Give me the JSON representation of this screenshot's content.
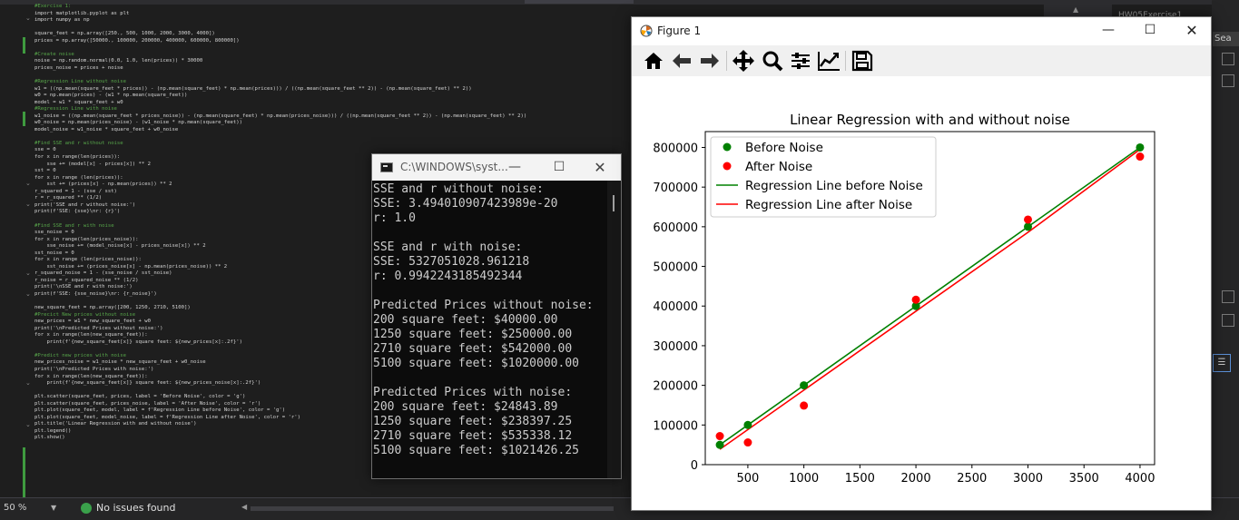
{
  "editor": {
    "code_lines": [
      {
        "t": "#Exercise 1:",
        "c": "cm"
      },
      {
        "t": "import matplotlib.pyplot as plt"
      },
      {
        "t": "import numpy as np"
      },
      {
        "t": ""
      },
      {
        "t": "square_feet = np.array([250., 500, 1000, 2000, 3000, 4000])"
      },
      {
        "t": "prices = np.array([50000., 100000, 200000, 400000, 600000, 800000])"
      },
      {
        "t": ""
      },
      {
        "t": "#Create noise",
        "c": "cm"
      },
      {
        "t": "noise = np.random.normal(0.0, 1.0, len(prices)) * 30000"
      },
      {
        "t": "prices_noise = prices + noise"
      },
      {
        "t": ""
      },
      {
        "t": "#Regression Line without noise",
        "c": "cm"
      },
      {
        "t": "w1 = ((np.mean(square_feet * prices)) - (np.mean(square_feet) * np.mean(prices))) / ((np.mean(square_feet ** 2)) - (np.mean(square_feet) ** 2))"
      },
      {
        "t": "w0 = np.mean(prices) - (w1 * np.mean(square_feet))"
      },
      {
        "t": "model = w1 * square_feet + w0"
      },
      {
        "t": "#Regression Line with noise",
        "c": "cm"
      },
      {
        "t": "w1_noise = ((np.mean(square_feet * prices_noise)) - (np.mean(square_feet) * np.mean(prices_noise))) / ((np.mean(square_feet ** 2)) - (np.mean(square_feet) ** 2))"
      },
      {
        "t": "w0_noise = np.mean(prices_noise) - (w1_noise * np.mean(square_feet))"
      },
      {
        "t": "model_noise = w1_noise * square_feet + w0_noise"
      },
      {
        "t": ""
      },
      {
        "t": "#Find SSE and r without noise",
        "c": "cm"
      },
      {
        "t": "sse = 0"
      },
      {
        "t": "for x in range(len(prices)):"
      },
      {
        "t": "    sse += (model[x] - prices[x]) ** 2"
      },
      {
        "t": "sst = 0"
      },
      {
        "t": "for x in range (len(prices)):"
      },
      {
        "t": "    sst += (prices[x] - np.mean(prices)) ** 2"
      },
      {
        "t": "r_squared = 1 - (sse / sst)"
      },
      {
        "t": "r = r_squared ** (1/2)"
      },
      {
        "t": "print('SSE and r without noise:')"
      },
      {
        "t": "print(f'SSE: {sse}\\nr: {r}')"
      },
      {
        "t": ""
      },
      {
        "t": "#Find SSE and r with noise",
        "c": "cm"
      },
      {
        "t": "sse_noise = 0"
      },
      {
        "t": "for x in range(len(prices_noise)):"
      },
      {
        "t": "    sse_noise += (model_noise[x] - prices_noise[x]) ** 2"
      },
      {
        "t": "sst_noise = 0"
      },
      {
        "t": "for x in range (len(prices_noise)):"
      },
      {
        "t": "    sst_noise += (prices_noise[x] - np.mean(prices_noise)) ** 2"
      },
      {
        "t": "r_squared_noise = 1 - (sse_noise / sst_noise)"
      },
      {
        "t": "r_noise = r_squared_noise ** (1/2)"
      },
      {
        "t": "print('\\nSSE and r with noise:')"
      },
      {
        "t": "print(f'SSE: {sse_noise}\\nr: {r_noise}')"
      },
      {
        "t": ""
      },
      {
        "t": "new_square_feet = np.array([200, 1250, 2710, 5100])"
      },
      {
        "t": "#Precict New prices without noise",
        "c": "cm"
      },
      {
        "t": "new_prices = w1 * new_square_feet + w0"
      },
      {
        "t": "print('\\nPredicted Prices without noise:')"
      },
      {
        "t": "for x in range(len(new_square_feet)):"
      },
      {
        "t": "    print(f'{new_square_feet[x]} square feet: ${new_prices[x]:.2f}')"
      },
      {
        "t": ""
      },
      {
        "t": "#Predict new prices with noise",
        "c": "cm"
      },
      {
        "t": "new_prices_noise = w1_noise * new_square_feet + w0_noise"
      },
      {
        "t": "print('\\nPredicted Prices with noise:')"
      },
      {
        "t": "for x in range(len(new_square_feet)):"
      },
      {
        "t": "    print(f'{new_square_feet[x]} square feet: ${new_prices_noise[x]:.2f}')"
      },
      {
        "t": ""
      },
      {
        "t": "plt.scatter(square_feet, prices, label = 'Before Noise', color = 'g')"
      },
      {
        "t": "plt.scatter(square_feet, prices_noise, label = 'After Noise', color = 'r')"
      },
      {
        "t": "plt.plot(square_feet, model, label = f'Regression Line before Noise', color = 'g')"
      },
      {
        "t": "plt.plot(square_feet, model_noise, label = f'Regression Line after Noise', color = 'r')"
      },
      {
        "t": "plt.title('Linear Regression with and without noise')"
      },
      {
        "t": "plt.legend()"
      },
      {
        "t": "plt.show()"
      }
    ]
  },
  "right_panel": {
    "solution_item": "HW05Exercise1",
    "search_tab": "Sea"
  },
  "statusbar": {
    "zoom": "50 %",
    "issues": "No issues found"
  },
  "console": {
    "title": "C:\\WINDOWS\\syst...",
    "lines": [
      "SSE and r without noise:",
      "SSE: 3.494010907423989e-20",
      "r: 1.0",
      "",
      "SSE and r with noise:",
      "SSE: 5327051028.961218",
      "r: 0.9942243185492344",
      "",
      "Predicted Prices without noise:",
      "200 square feet: $40000.00",
      "1250 square feet: $250000.00",
      "2710 square feet: $542000.00",
      "5100 square feet: $1020000.00",
      "",
      "Predicted Prices with noise:",
      "200 square feet: $24843.89",
      "1250 square feet: $238397.25",
      "2710 square feet: $535338.12",
      "5100 square feet: $1021426.25"
    ]
  },
  "figure": {
    "title": "Figure 1",
    "toolbar": [
      "home-icon",
      "back-icon",
      "forward-icon",
      "pan-icon",
      "zoom-icon",
      "configure-subplots-icon",
      "edit-axis-icon",
      "save-icon"
    ]
  },
  "chart_data": {
    "type": "scatter",
    "title": "Linear Regression with and without noise",
    "xlabel": "",
    "ylabel": "",
    "xlim": [
      120,
      4130
    ],
    "ylim": [
      0,
      840000
    ],
    "xticks": [
      500,
      1000,
      1500,
      2000,
      2500,
      3000,
      3500,
      4000
    ],
    "yticks": [
      0,
      100000,
      200000,
      300000,
      400000,
      500000,
      600000,
      700000,
      800000
    ],
    "grid": false,
    "legend_position": "upper-left",
    "x": [
      250,
      500,
      1000,
      2000,
      3000,
      4000
    ],
    "series": [
      {
        "name": "Before Noise",
        "kind": "scatter",
        "color": "#008000",
        "values": [
          50000,
          100000,
          200000,
          400000,
          600000,
          800000
        ]
      },
      {
        "name": "After Noise",
        "kind": "scatter",
        "color": "#ff0000",
        "values": [
          72000,
          56000,
          149000,
          416000,
          618000,
          777000
        ]
      },
      {
        "name": "Regression Line before Noise",
        "kind": "line",
        "color": "#008000",
        "values": [
          50000,
          100000,
          200000,
          400000,
          600000,
          800000
        ]
      },
      {
        "name": "Regression Line after Noise",
        "kind": "line",
        "color": "#ff0000",
        "values": [
          38700,
          88400,
          188000,
          387000,
          586000,
          795000
        ]
      }
    ]
  }
}
